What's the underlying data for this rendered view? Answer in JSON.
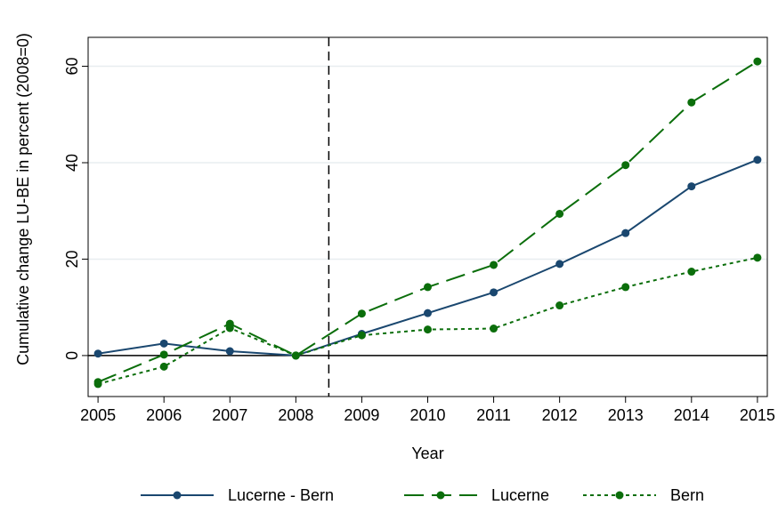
{
  "chart_data": {
    "type": "line",
    "xlabel": "Year",
    "ylabel": "Cumulative change LU-BE in percent (2008=0)",
    "x": [
      2005,
      2006,
      2007,
      2008,
      2009,
      2010,
      2011,
      2012,
      2013,
      2014,
      2015
    ],
    "x_tick_labels": [
      "2005",
      "2006",
      "2007",
      "2008",
      "2009",
      "2010",
      "2011",
      "2012",
      "2013",
      "2014",
      "2015"
    ],
    "y_tick_labels": [
      "0",
      "20",
      "40",
      "60"
    ],
    "y_ticks": [
      0,
      20,
      40,
      60
    ],
    "ylim": [
      -8.5,
      66
    ],
    "xlim": [
      2004.85,
      2015.15
    ],
    "grid": true,
    "reference_lines": {
      "vertical_x": 2008.5,
      "horizontal_y": 0
    },
    "legend_position": "bottom",
    "series": [
      {
        "name": "Lucerne - Bern",
        "color": "#1a476f",
        "style": "solid",
        "values": [
          0.4,
          2.5,
          0.9,
          0.0,
          4.5,
          8.8,
          13.1,
          19.0,
          25.4,
          35.1,
          40.6
        ]
      },
      {
        "name": "Lucerne",
        "color": "#0b6e0b",
        "style": "longdash",
        "values": [
          -5.5,
          0.2,
          6.6,
          0.0,
          8.7,
          14.2,
          18.8,
          29.4,
          39.5,
          52.5,
          61.0
        ]
      },
      {
        "name": "Bern",
        "color": "#0b6e0b",
        "style": "shortdash",
        "values": [
          -5.9,
          -2.3,
          5.7,
          0.0,
          4.2,
          5.4,
          5.6,
          10.4,
          14.2,
          17.4,
          20.3
        ]
      }
    ]
  }
}
